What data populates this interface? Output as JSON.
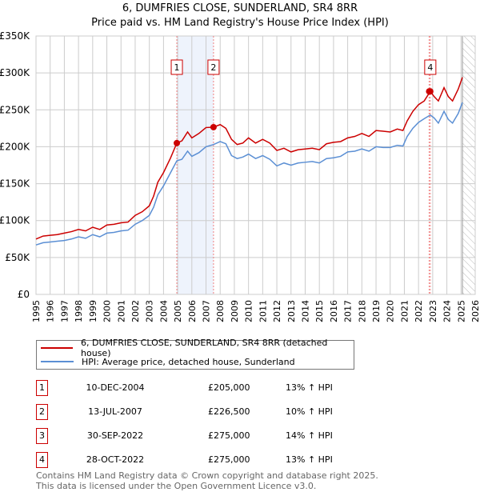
{
  "chart_data": {
    "type": "line",
    "title": "6, DUMFRIES CLOSE, SUNDERLAND, SR4 8RR",
    "subtitle": "Price paid vs. HM Land Registry's House Price Index (HPI)",
    "xlim": [
      1995,
      2026
    ],
    "ylim": [
      0,
      350000
    ],
    "y_ticks": [
      0,
      50000,
      100000,
      150000,
      200000,
      250000,
      300000,
      350000
    ],
    "y_tick_labels": [
      "£0",
      "£50K",
      "£100K",
      "£150K",
      "£200K",
      "£250K",
      "£300K",
      "£350K"
    ],
    "x_ticks": [
      "1995",
      "1996",
      "1997",
      "1998",
      "1999",
      "2000",
      "2001",
      "2002",
      "2003",
      "2004",
      "2005",
      "2006",
      "2007",
      "2008",
      "2009",
      "2010",
      "2011",
      "2012",
      "2013",
      "2014",
      "2015",
      "2016",
      "2017",
      "2018",
      "2019",
      "2020",
      "2021",
      "2022",
      "2023",
      "2024",
      "2025",
      "2026"
    ],
    "grid": true,
    "shaded_range": [
      2004.94,
      2007.53
    ],
    "forecast_hatch_from": 2025.1,
    "x": [
      1995,
      1995.5,
      1996,
      1996.5,
      1997,
      1997.5,
      1998,
      1998.5,
      1999,
      1999.5,
      2000,
      2000.5,
      2001,
      2001.5,
      2002,
      2002.5,
      2003,
      2003.3,
      2003.6,
      2004,
      2004.5,
      2004.94,
      2005.3,
      2005.7,
      2006,
      2006.5,
      2007,
      2007.53,
      2008,
      2008.4,
      2008.8,
      2009.2,
      2009.6,
      2010,
      2010.5,
      2011,
      2011.5,
      2012,
      2012.5,
      2013,
      2013.5,
      2014,
      2014.5,
      2015,
      2015.5,
      2016,
      2016.5,
      2017,
      2017.5,
      2018,
      2018.5,
      2019,
      2019.5,
      2020,
      2020.5,
      2020.9,
      2021.2,
      2021.6,
      2022,
      2022.4,
      2022.83,
      2023.1,
      2023.4,
      2023.8,
      2024.1,
      2024.4,
      2024.8,
      2025.1
    ],
    "series": [
      {
        "name": "6, DUMFRIES CLOSE, SUNDERLAND, SR4 8RR (detached house)",
        "color": "#cc0000",
        "values": [
          75,
          79,
          80,
          81,
          83,
          85,
          88,
          86,
          91,
          88,
          94,
          95,
          97,
          98,
          107,
          112,
          120,
          133,
          152,
          165,
          185,
          205,
          208,
          220,
          212,
          218,
          226,
          226.5,
          230,
          225,
          210,
          203,
          205,
          212,
          205,
          210,
          205,
          195,
          198,
          193,
          196,
          197,
          198,
          196,
          204,
          206,
          207,
          212,
          214,
          218,
          214,
          222,
          221,
          220,
          224,
          222,
          235,
          248,
          257,
          262,
          275,
          268,
          262,
          280,
          268,
          262,
          278,
          294
        ]
      },
      {
        "name": "HPI: Average price, detached house, Sunderland",
        "color": "#5b8fd4",
        "values": [
          67,
          70,
          71,
          72,
          73,
          75,
          78,
          76,
          81,
          78,
          83,
          84,
          86,
          87,
          95,
          100,
          107,
          118,
          135,
          147,
          165,
          181,
          183,
          194,
          187,
          192,
          200,
          203,
          207,
          204,
          188,
          184,
          186,
          190,
          184,
          188,
          183,
          174,
          178,
          175,
          178,
          179,
          180,
          178,
          184,
          185,
          187,
          193,
          194,
          197,
          194,
          200,
          199,
          199,
          202,
          201,
          214,
          225,
          233,
          238,
          243,
          239,
          232,
          248,
          237,
          232,
          245,
          260
        ]
      }
    ],
    "sales": [
      {
        "num": "1",
        "year": 2004.94,
        "price": 205,
        "date": "10-DEC-2004",
        "price_label": "£205,000",
        "hpi": "13% ↑ HPI",
        "box_on_chart": true
      },
      {
        "num": "2",
        "year": 2007.53,
        "price": 226.5,
        "date": "13-JUL-2007",
        "price_label": "£226,500",
        "hpi": "10% ↑ HPI",
        "box_on_chart": true
      },
      {
        "num": "3",
        "year": 2022.75,
        "price": 275,
        "date": "30-SEP-2022",
        "price_label": "£275,000",
        "hpi": "14% ↑ HPI",
        "box_on_chart": false
      },
      {
        "num": "4",
        "year": 2022.83,
        "price": 275,
        "date": "28-OCT-2022",
        "price_label": "£275,000",
        "hpi": "13% ↑ HPI",
        "box_on_chart": true
      }
    ]
  },
  "legend": {
    "property": "6, DUMFRIES CLOSE, SUNDERLAND, SR4 8RR (detached house)",
    "hpi": "HPI: Average price, detached house, Sunderland"
  },
  "footer": {
    "line1": "Contains HM Land Registry data © Crown copyright and database right 2025.",
    "line2": "This data is licensed under the Open Government Licence v3.0."
  }
}
